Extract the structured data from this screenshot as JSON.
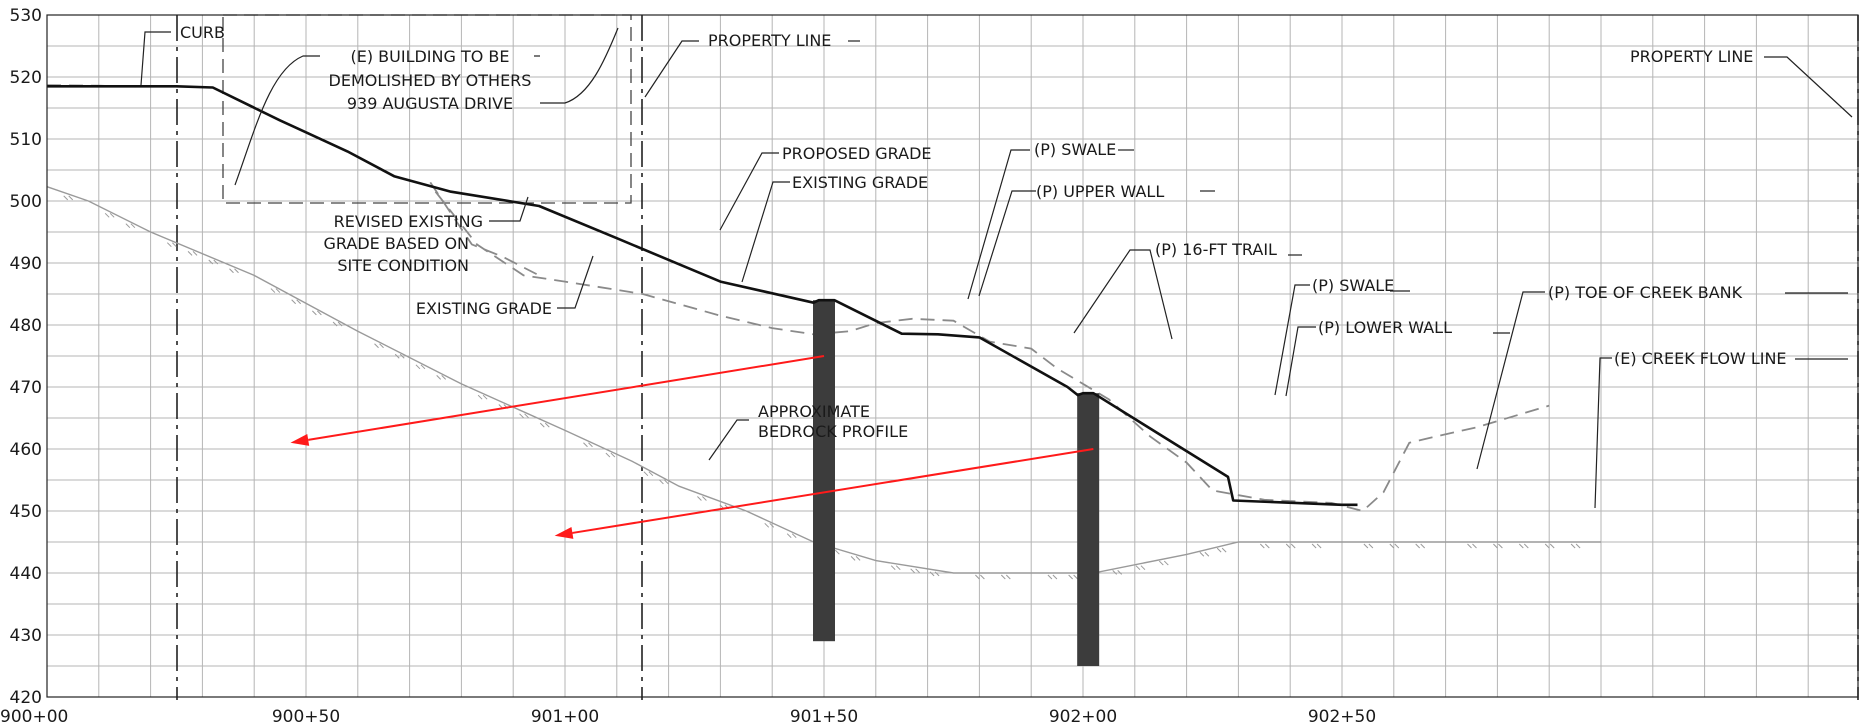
{
  "chart_data": {
    "type": "line",
    "x_ticks": [
      "900+00",
      "900+50",
      "901+00",
      "901+50",
      "902+00",
      "902+50"
    ],
    "y_ticks": [
      420,
      430,
      440,
      450,
      460,
      470,
      480,
      490,
      500,
      510,
      520,
      530
    ],
    "xlim": [
      0,
      300
    ],
    "ylim": [
      420,
      530
    ],
    "grid": true,
    "series": [
      {
        "key": "proposed",
        "points": [
          [
            0,
            518.5
          ],
          [
            13,
            518.5
          ],
          [
            25,
            518.5
          ],
          [
            32,
            518.3
          ],
          [
            45,
            513
          ],
          [
            58,
            508
          ],
          [
            67,
            504
          ],
          [
            78,
            501.5
          ],
          [
            95,
            499.2
          ],
          [
            110,
            494
          ],
          [
            130,
            487
          ],
          [
            148,
            483.6
          ],
          [
            149,
            484
          ],
          [
            150,
            484
          ],
          [
            152,
            484
          ],
          [
            165,
            478.6
          ],
          [
            172,
            478.5
          ],
          [
            180,
            478
          ],
          [
            197,
            470
          ],
          [
            199,
            468.7
          ],
          [
            200,
            469
          ],
          [
            202,
            469
          ],
          [
            228,
            455.5
          ],
          [
            229,
            451.7
          ],
          [
            250,
            451
          ],
          [
            253,
            451
          ]
        ]
      },
      {
        "key": "existing_upper",
        "points": [
          [
            0,
            518.7
          ],
          [
            10,
            518.6
          ],
          [
            17,
            518.4
          ]
        ]
      },
      {
        "key": "existing_main",
        "points": [
          [
            75,
            501.5
          ],
          [
            83,
            493
          ],
          [
            92,
            488
          ],
          [
            100,
            487
          ],
          [
            115,
            485
          ],
          [
            130,
            481.5
          ],
          [
            140,
            479.5
          ],
          [
            148,
            478.5
          ],
          [
            155,
            479
          ],
          [
            160,
            480.3
          ],
          [
            167,
            481
          ],
          [
            175,
            480.7
          ],
          [
            182,
            477.3
          ],
          [
            190,
            476.2
          ],
          [
            195,
            473
          ],
          [
            205,
            468
          ],
          [
            213,
            462
          ],
          [
            220,
            457.8
          ],
          [
            225,
            453.3
          ],
          [
            235,
            451.8
          ],
          [
            248,
            451.3
          ],
          [
            254,
            450
          ],
          [
            258,
            453
          ],
          [
            263,
            461
          ],
          [
            268,
            462
          ],
          [
            276,
            463.5
          ],
          [
            290,
            467
          ]
        ]
      },
      {
        "key": "revised_existing",
        "points": [
          [
            74,
            503
          ],
          [
            82,
            493
          ],
          [
            88,
            491
          ],
          [
            95,
            488
          ]
        ]
      },
      {
        "key": "bedrock",
        "points": [
          [
            0,
            502.3
          ],
          [
            8,
            500
          ],
          [
            20,
            495
          ],
          [
            40,
            488
          ],
          [
            60,
            479
          ],
          [
            80,
            470.5
          ],
          [
            100,
            463
          ],
          [
            113,
            458
          ],
          [
            122,
            454
          ],
          [
            135,
            450
          ],
          [
            148,
            445
          ],
          [
            160,
            442
          ],
          [
            175,
            440
          ],
          [
            190,
            440
          ],
          [
            202,
            440
          ],
          [
            220,
            443
          ],
          [
            230,
            445
          ],
          [
            250,
            445
          ],
          [
            270,
            445
          ],
          [
            300,
            445
          ]
        ]
      }
    ],
    "piles": [
      {
        "key": "upper_wall_pile",
        "x": 150,
        "top": 484,
        "bottom": 429
      },
      {
        "key": "lower_wall_pile",
        "x": 201,
        "top": 469,
        "bottom": 425
      }
    ],
    "arrows": [
      {
        "from": [
          150,
          475
        ],
        "to": [
          47,
          461
        ]
      },
      {
        "from": [
          202,
          460
        ],
        "to": [
          98,
          446
        ]
      }
    ]
  },
  "labels": {
    "curb": "CURB",
    "bldg_l1": "(E) BUILDING TO BE",
    "bldg_l2": "DEMOLISHED BY OTHERS",
    "bldg_l3": "939 AUGUSTA DRIVE",
    "prop_line_1": "PROPERTY LINE",
    "prop_line_2": "PROPERTY LINE",
    "proposed_grade": "PROPOSED GRADE",
    "existing_grade_1": "EXISTING GRADE",
    "revised_l1": "REVISED EXISTING",
    "revised_l2": "GRADE BASED ON",
    "revised_l3": "SITE CONDITION",
    "existing_grade_2": "EXISTING GRADE",
    "p_swale_1": "(P) SWALE",
    "p_upper_wall": "(P) UPPER WALL",
    "p_trail": "(P) 16-FT TRAIL",
    "p_swale_2": "(P) SWALE",
    "p_lower_wall": "(P) LOWER WALL",
    "p_toe": "(P) TOE OF CREEK BANK",
    "e_creek": "(E) CREEK FLOW LINE",
    "bedrock_l1": "APPROXIMATE",
    "bedrock_l2": "BEDROCK PROFILE"
  },
  "colors": {
    "arrow": "#ff1a1a",
    "pile": "#3c3c3c",
    "proposed": "#111111",
    "existing": "#8a8a8a",
    "bedrock": "#9a9a9a"
  }
}
